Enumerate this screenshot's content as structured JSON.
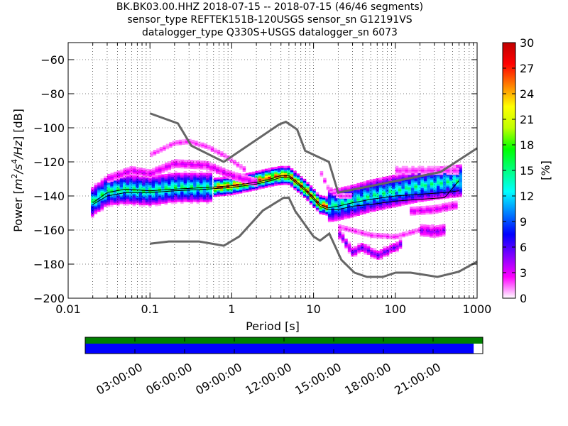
{
  "title": {
    "line1": "BK.BK03.00.HHZ   2018-07-15 -- 2018-07-15  (46/46 segments)",
    "line2": "sensor_type REFTEK151B-120USGS sensor_sn G12191VS",
    "line3": "datalogger_type Q330S+USGS datalogger_sn 6073"
  },
  "chart_data": {
    "type": "heatmap",
    "subtype": "probabilistic power spectral density",
    "xlabel": "Period [s]",
    "ylabel_parts": [
      "Power [",
      "m",
      "2",
      "/",
      "s",
      "4",
      "/",
      "Hz",
      "] [dB]"
    ],
    "xscale": "log",
    "xlim": [
      0.01,
      1000
    ],
    "ylim": [
      -200,
      -50
    ],
    "xticks": [
      0.01,
      0.1,
      1,
      10,
      100,
      1000
    ],
    "xtick_labels": [
      "0.01",
      "0.1",
      "1",
      "10",
      "100",
      "1000"
    ],
    "yticks": [
      -200,
      -180,
      -160,
      -140,
      -120,
      -100,
      -80,
      -60
    ],
    "ytick_labels": [
      "−200",
      "−180",
      "−160",
      "−140",
      "−120",
      "−100",
      "−80",
      "−60"
    ],
    "grid": true,
    "colorbar": {
      "label": "[%]",
      "range": [
        0,
        30
      ],
      "ticks": [
        0,
        3,
        6,
        9,
        12,
        15,
        18,
        21,
        24,
        27,
        30
      ],
      "tick_labels": [
        "0",
        "3",
        "6",
        "9",
        "12",
        "15",
        "18",
        "21",
        "24",
        "27",
        "30"
      ],
      "colormap": [
        "#ffffff",
        "#ff00ff",
        "#8000ff",
        "#0000ff",
        "#0080ff",
        "#00ffff",
        "#00ff80",
        "#00ff00",
        "#c0ff00",
        "#ffff00",
        "#ff8000",
        "#ff0000",
        "#c00000"
      ]
    },
    "noise_models": [
      {
        "name": "NHNM",
        "points": [
          [
            0.1,
            -91.5
          ],
          [
            0.22,
            -97.4
          ],
          [
            0.32,
            -110.5
          ],
          [
            0.8,
            -120
          ],
          [
            3.8,
            -98
          ],
          [
            4.6,
            -96.5
          ],
          [
            6.3,
            -101
          ],
          [
            7.9,
            -113.5
          ],
          [
            15.4,
            -120
          ],
          [
            20,
            -138
          ],
          [
            354.8,
            -126
          ],
          [
            1000,
            -112
          ]
        ]
      },
      {
        "name": "NLNM",
        "points": [
          [
            0.1,
            -168
          ],
          [
            0.17,
            -166.7
          ],
          [
            0.4,
            -166.7
          ],
          [
            0.8,
            -169.2
          ],
          [
            1.24,
            -163.7
          ],
          [
            2.4,
            -148.6
          ],
          [
            4.3,
            -141.1
          ],
          [
            5,
            -141.1
          ],
          [
            6,
            -149
          ],
          [
            10,
            -163.8
          ],
          [
            12,
            -166.2
          ],
          [
            15.6,
            -162.1
          ],
          [
            21.9,
            -177.5
          ],
          [
            31.6,
            -185
          ],
          [
            45,
            -187.5
          ],
          [
            70,
            -187.5
          ],
          [
            101,
            -185
          ],
          [
            154,
            -185
          ],
          [
            328,
            -187.5
          ],
          [
            600,
            -184.4
          ],
          [
            1000,
            -178.5
          ]
        ]
      }
    ],
    "mode_line": [
      [
        0.02,
        -144
      ],
      [
        0.03,
        -138
      ],
      [
        0.05,
        -136
      ],
      [
        0.1,
        -137
      ],
      [
        0.2,
        -136
      ],
      [
        0.5,
        -135
      ],
      [
        1,
        -134
      ],
      [
        2,
        -132
      ],
      [
        3,
        -130
      ],
      [
        4,
        -128
      ],
      [
        5,
        -128
      ],
      [
        6,
        -131
      ],
      [
        8,
        -136
      ],
      [
        10,
        -141
      ],
      [
        12,
        -145
      ],
      [
        15,
        -147
      ],
      [
        20,
        -146
      ],
      [
        30,
        -144
      ],
      [
        50,
        -142
      ],
      [
        100,
        -140
      ],
      [
        200,
        -139
      ],
      [
        400,
        -138
      ],
      [
        600,
        -137
      ]
    ],
    "percentile_line": [
      [
        0.02,
        -145
      ],
      [
        0.03,
        -140
      ],
      [
        0.05,
        -138
      ],
      [
        0.1,
        -138
      ],
      [
        0.2,
        -137
      ],
      [
        0.5,
        -136
      ],
      [
        1,
        -135
      ],
      [
        2,
        -133
      ],
      [
        3,
        -131
      ],
      [
        4,
        -129
      ],
      [
        5,
        -129
      ],
      [
        6,
        -132
      ],
      [
        8,
        -137
      ],
      [
        10,
        -142
      ],
      [
        12,
        -146
      ],
      [
        15,
        -148
      ],
      [
        20,
        -148
      ],
      [
        30,
        -146
      ],
      [
        50,
        -145
      ],
      [
        100,
        -143
      ],
      [
        200,
        -142
      ],
      [
        400,
        -141
      ],
      [
        600,
        -131
      ]
    ],
    "density_bands": [
      {
        "x_range": [
          0.019,
          0.6
        ],
        "points": [
          [
            0.019,
            -144
          ],
          [
            0.025,
            -140
          ],
          [
            0.03,
            -137
          ],
          [
            0.05,
            -136
          ],
          [
            0.1,
            -137
          ],
          [
            0.2,
            -135
          ],
          [
            0.4,
            -135
          ],
          [
            0.6,
            -135
          ]
        ],
        "width_db": 9,
        "peak": 14
      },
      {
        "x_range": [
          0.6,
          15
        ],
        "points": [
          [
            0.6,
            -135
          ],
          [
            1,
            -134
          ],
          [
            2,
            -131
          ],
          [
            3,
            -129
          ],
          [
            4,
            -128
          ],
          [
            5,
            -128
          ],
          [
            6,
            -131
          ],
          [
            8,
            -136
          ],
          [
            10,
            -141
          ],
          [
            12,
            -145
          ],
          [
            15,
            -146
          ]
        ],
        "width_db": 5,
        "peak": 24
      },
      {
        "x_range": [
          15,
          650
        ],
        "points": [
          [
            15,
            -146
          ],
          [
            20,
            -145
          ],
          [
            30,
            -143
          ],
          [
            50,
            -140
          ],
          [
            100,
            -137
          ],
          [
            200,
            -134
          ],
          [
            400,
            -132
          ],
          [
            650,
            -131
          ]
        ],
        "width_db": 10,
        "peak": 13
      },
      {
        "x_range": [
          0.03,
          2
        ],
        "points": [
          [
            0.03,
            -130
          ],
          [
            0.06,
            -125
          ],
          [
            0.1,
            -127
          ],
          [
            0.2,
            -121
          ],
          [
            0.5,
            -122
          ],
          [
            1,
            -128
          ],
          [
            2,
            -132
          ]
        ],
        "width_db": 3,
        "peak": 3
      },
      {
        "x_range": [
          0.1,
          1.5
        ],
        "points": [
          [
            0.1,
            -116
          ],
          [
            0.2,
            -109
          ],
          [
            0.3,
            -108
          ],
          [
            0.5,
            -111
          ],
          [
            0.8,
            -116
          ],
          [
            1.5,
            -125
          ]
        ],
        "width_db": 2,
        "peak": 2
      },
      {
        "x_range": [
          20,
          120
        ],
        "points": [
          [
            20,
            -161
          ],
          [
            30,
            -173
          ],
          [
            40,
            -170
          ],
          [
            60,
            -175
          ],
          [
            100,
            -170
          ],
          [
            120,
            -168
          ]
        ],
        "width_db": 3,
        "peak": 5
      },
      {
        "x_range": [
          20,
          300
        ],
        "points": [
          [
            20,
            -158
          ],
          [
            50,
            -163
          ],
          [
            100,
            -164
          ],
          [
            200,
            -160
          ],
          [
            300,
            -158
          ]
        ],
        "width_db": 2,
        "peak": 2
      },
      {
        "x_range": [
          12,
          30
        ],
        "points": [
          [
            12,
            -125
          ],
          [
            15,
            -135
          ],
          [
            20,
            -140
          ],
          [
            30,
            -140
          ]
        ],
        "width_db": 2,
        "peak": 2
      }
    ],
    "right_clusters": [
      {
        "x_range": [
          100,
          600
        ],
        "points": [
          [
            100,
            -125
          ],
          [
            200,
            -125
          ],
          [
            400,
            -125
          ],
          [
            600,
            -125
          ]
        ],
        "width_db": 3,
        "peak": 2
      },
      {
        "x_range": [
          150,
          600
        ],
        "points": [
          [
            150,
            -149
          ],
          [
            300,
            -148
          ],
          [
            600,
            -145
          ]
        ],
        "width_db": 3,
        "peak": 3
      },
      {
        "x_range": [
          200,
          400
        ],
        "points": [
          [
            200,
            -160
          ],
          [
            300,
            -161
          ],
          [
            400,
            -160
          ]
        ],
        "width_db": 4,
        "peak": 4
      }
    ]
  },
  "timeline": {
    "tick_labels": [
      "03:00:00",
      "06:00:00",
      "09:00:00",
      "12:00:00",
      "15:00:00",
      "18:00:00",
      "21:00:00"
    ],
    "tick_hours": [
      3,
      6,
      9,
      12,
      15,
      18,
      21
    ],
    "span_hours": [
      0,
      24
    ],
    "data_coverage_fraction": 1.0,
    "segment_coverage_fraction": 0.977,
    "data_color": "#008000",
    "segment_color": "#0000ff"
  }
}
